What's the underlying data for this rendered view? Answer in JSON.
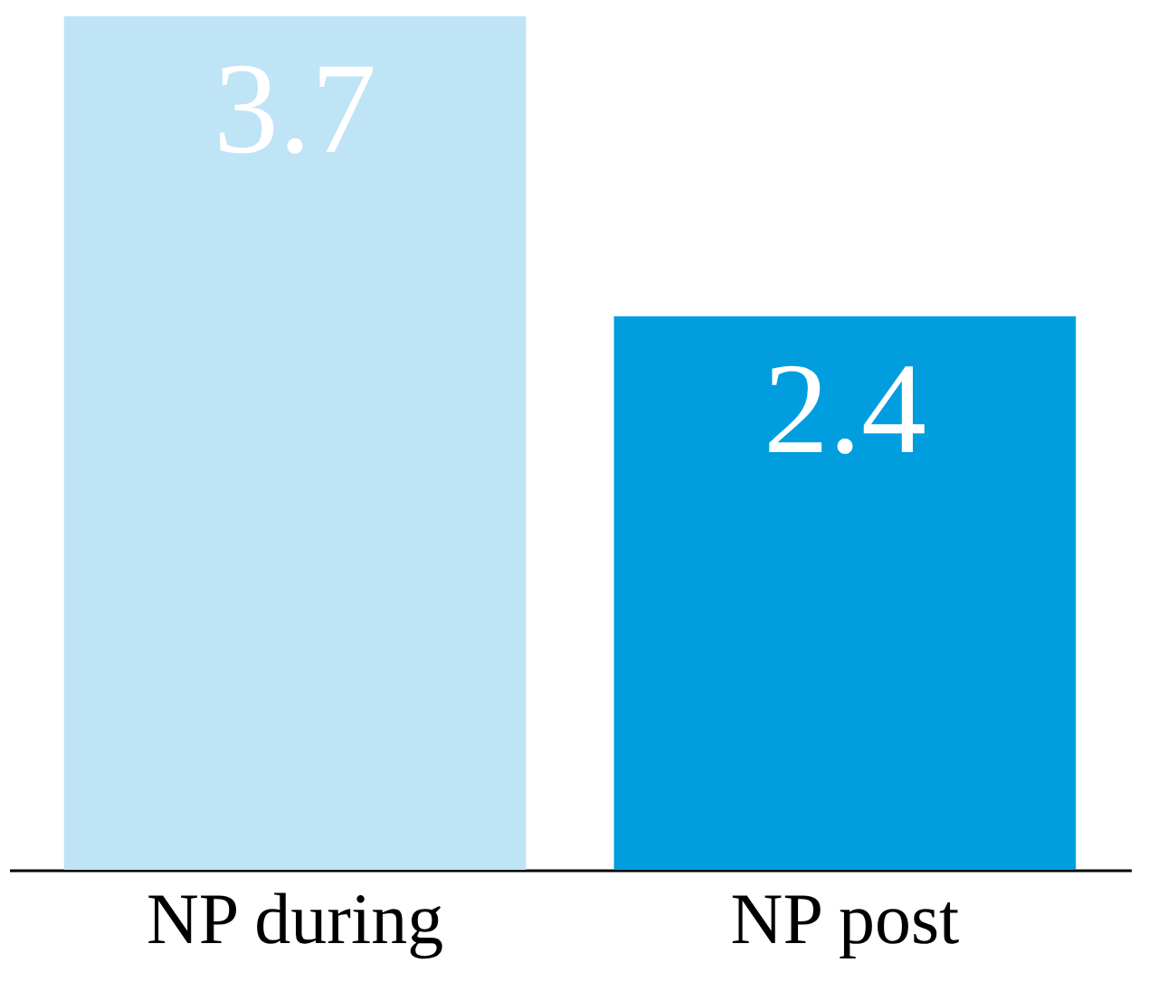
{
  "chart_data": {
    "type": "bar",
    "categories": [
      "NP during",
      "NP post"
    ],
    "values": [
      3.7,
      2.4
    ],
    "colors": [
      "#bee4f6",
      "#009ddf"
    ],
    "data_labels": true
  }
}
